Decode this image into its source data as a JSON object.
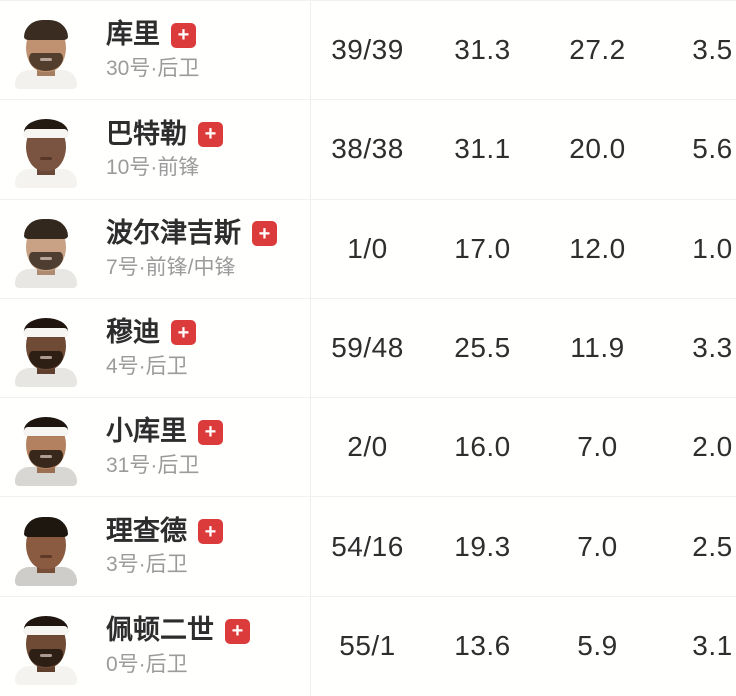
{
  "colors": {
    "badge_red": "#dc3b3b",
    "name_text": "#2d2d2d",
    "detail_text": "#9b9b9b",
    "stat_text": "#2e2e2e",
    "divider": "#efeeec"
  },
  "badge_label": "+",
  "players": [
    {
      "name": "库里",
      "detail": "30号·后卫",
      "stats": [
        "39/39",
        "31.3",
        "27.2",
        "3.5"
      ],
      "avatar": {
        "skin": "#c09272",
        "hair": "#3a2c20",
        "jersey": "#f3f1ed",
        "band": "",
        "headband": false,
        "hair_top": true,
        "beard": true
      }
    },
    {
      "name": "巴特勒",
      "detail": "10号·前锋",
      "stats": [
        "38/38",
        "31.1",
        "20.0",
        "5.6"
      ],
      "avatar": {
        "skin": "#7a5440",
        "hair": "#231a12",
        "jersey": "#f4f3ef",
        "band": "#f6f5f1",
        "headband": true,
        "hair_top": true,
        "beard": false
      }
    },
    {
      "name": "波尔津吉斯",
      "detail": "7号·前锋/中锋",
      "stats": [
        "1/0",
        "17.0",
        "12.0",
        "1.0"
      ],
      "avatar": {
        "skin": "#c9a285",
        "hair": "#33281e",
        "jersey": "#e9e7e3",
        "band": "",
        "headband": false,
        "hair_top": true,
        "beard": true
      }
    },
    {
      "name": "穆迪",
      "detail": "4号·后卫",
      "stats": [
        "59/48",
        "25.5",
        "11.9",
        "3.3"
      ],
      "avatar": {
        "skin": "#6f4a35",
        "hair": "#20160f",
        "jersey": "#e8e6e2",
        "band": "#f6f5f1",
        "headband": true,
        "hair_top": true,
        "beard": true
      }
    },
    {
      "name": "小库里",
      "detail": "31号·后卫",
      "stats": [
        "2/0",
        "16.0",
        "7.0",
        "2.0"
      ],
      "avatar": {
        "skin": "#b3815f",
        "hair": "#1d150e",
        "jersey": "#d9d7d3",
        "band": "#f6f5f1",
        "headband": true,
        "hair_top": true,
        "beard": true
      }
    },
    {
      "name": "理查德",
      "detail": "3号·后卫",
      "stats": [
        "54/16",
        "19.3",
        "7.0",
        "2.5"
      ],
      "avatar": {
        "skin": "#8a5b41",
        "hair": "#1e1710",
        "jersey": "#cfcdc9",
        "band": "",
        "headband": false,
        "hair_top": true,
        "beard": false
      }
    },
    {
      "name": "佩顿二世",
      "detail": "0号·后卫",
      "stats": [
        "55/1",
        "13.6",
        "5.9",
        "3.1"
      ],
      "avatar": {
        "skin": "#6f4a35",
        "hair": "#20160f",
        "jersey": "#f4f3ef",
        "band": "#f6f5f1",
        "headband": true,
        "hair_top": true,
        "beard": true
      }
    }
  ]
}
